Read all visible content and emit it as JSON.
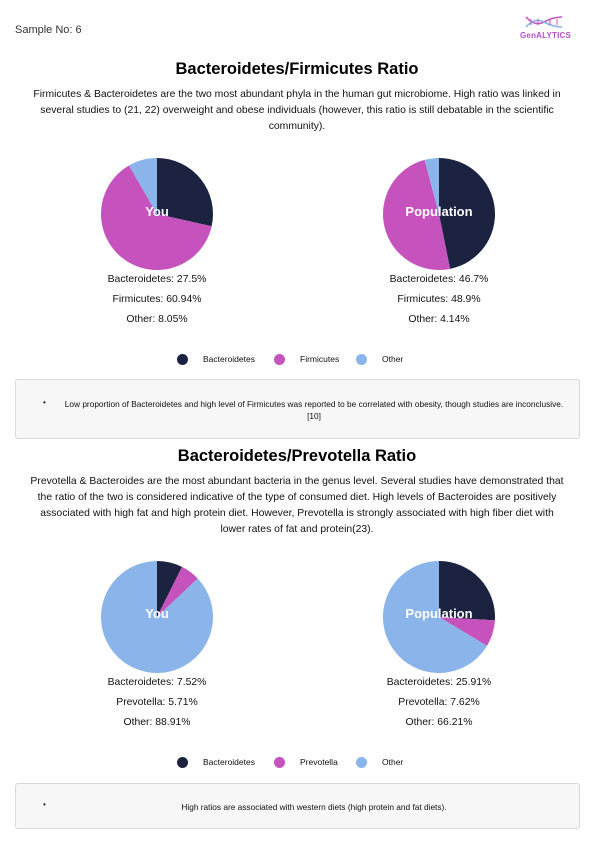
{
  "header": {
    "sample_label": "Sample No: 6",
    "logo_text": "GenALYTICS"
  },
  "colors": {
    "navy": "#1c2340",
    "magenta": "#c552bd",
    "lightblue": "#8ab4ea",
    "logo": "#b54fc9"
  },
  "sections": [
    {
      "title": "Bacteroidetes/Firmicutes Ratio",
      "description": "Firmicutes & Bacteroidetes are the two most abundant phyla in the human gut microbiome. High ratio was linked in several studies to (21, 22) overweight and obese individuals (however, this ratio is still debatable in the scientific community).",
      "pies": [
        {
          "label": "You",
          "stats": [
            "Bacteroidetes: 27.5%",
            "Firmicutes: 60.94%",
            "Other: 8.05%"
          ]
        },
        {
          "label": "Population",
          "stats": [
            "Bacteroidetes: 46.7%",
            "Firmicutes: 48.9%",
            "Other: 4.14%"
          ]
        }
      ],
      "legend": [
        "Bacteroidetes",
        "Firmicutes",
        "Other"
      ],
      "note_bullet": "•",
      "note": "Low proportion of Bacteroidetes and high level of Firmicutes was reported to be correlated with obesity, though studies are inconclusive.[10]"
    },
    {
      "title": "Bacteroidetes/Prevotella Ratio",
      "description": "Prevotella & Bacteroides are the most abundant bacteria in the genus level. Several studies have demonstrated that the ratio of the two is considered indicative of the type of consumed diet. High levels of Bacteroides are positively associated with high fat and high protein diet. However, Prevotella is strongly associated with high fiber diet with lower rates of fat and protein(23).",
      "pies": [
        {
          "label": "You",
          "stats": [
            "Bacteroidetes: 7.52%",
            "Prevotella: 5.71%",
            "Other: 88.91%"
          ]
        },
        {
          "label": "Population",
          "stats": [
            "Bacteroidetes: 25.91%",
            "Prevotella: 7.62%",
            "Other: 66.21%"
          ]
        }
      ],
      "legend": [
        "Bacteroidetes",
        "Prevotella",
        "Other"
      ],
      "note_bullet": "•",
      "note": "High ratios are associated with western diets (high protein and fat diets)."
    }
  ],
  "chart_data": [
    {
      "type": "pie",
      "title": "You",
      "categories": [
        "Bacteroidetes",
        "Firmicutes",
        "Other"
      ],
      "values": [
        27.5,
        60.94,
        8.05
      ],
      "colors": [
        "#1c2340",
        "#c552bd",
        "#8ab4ea"
      ]
    },
    {
      "type": "pie",
      "title": "Population",
      "categories": [
        "Bacteroidetes",
        "Firmicutes",
        "Other"
      ],
      "values": [
        46.7,
        48.9,
        4.14
      ],
      "colors": [
        "#1c2340",
        "#c552bd",
        "#8ab4ea"
      ]
    },
    {
      "type": "pie",
      "title": "You",
      "categories": [
        "Bacteroidetes",
        "Prevotella",
        "Other"
      ],
      "values": [
        7.52,
        5.71,
        88.91
      ],
      "colors": [
        "#1c2340",
        "#c552bd",
        "#8ab4ea"
      ]
    },
    {
      "type": "pie",
      "title": "Population",
      "categories": [
        "Bacteroidetes",
        "Prevotella",
        "Other"
      ],
      "values": [
        25.91,
        7.62,
        66.21
      ],
      "colors": [
        "#1c2340",
        "#c552bd",
        "#8ab4ea"
      ]
    }
  ]
}
